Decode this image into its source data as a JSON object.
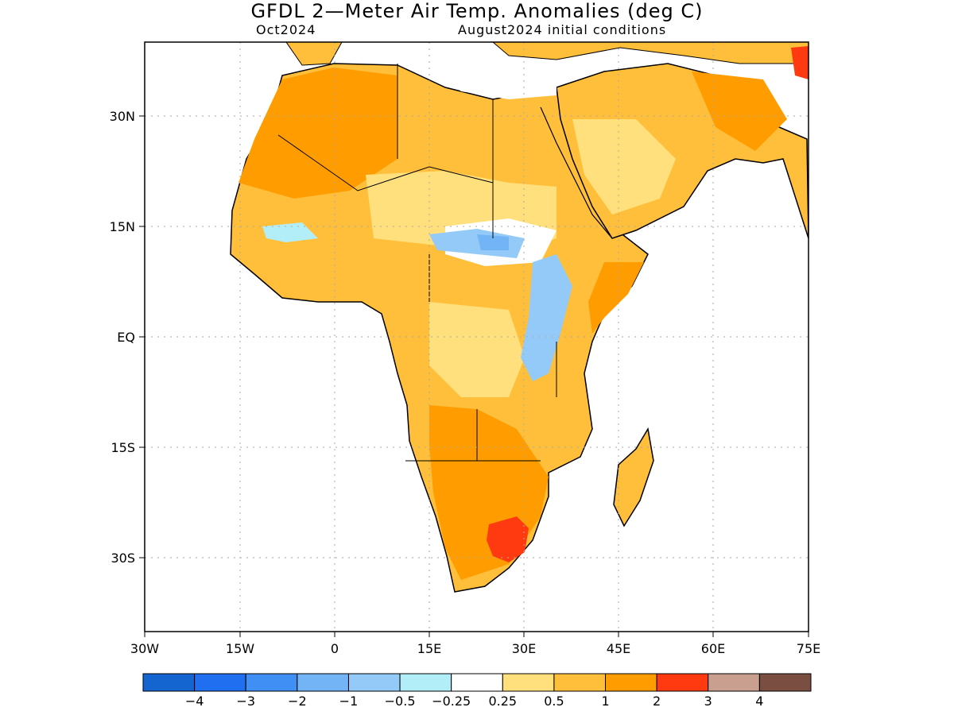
{
  "title": "GFDL 2—Meter Air Temp. Anomalies (deg C)",
  "subtitle_left": "Oct2024",
  "subtitle_right": "August2024 initial conditions",
  "map": {
    "region": "Africa and Arabian Peninsula",
    "lon_range": [
      -30,
      75
    ],
    "lat_range": [
      -40,
      40
    ],
    "x_ticks": [
      "30W",
      "15W",
      "0",
      "15E",
      "30E",
      "45E",
      "60E",
      "75E"
    ],
    "y_ticks": [
      "30N",
      "15N",
      "EQ",
      "15S",
      "30S"
    ],
    "grid": "dotted"
  },
  "colorbar": {
    "colors": [
      "#1565d0",
      "#1f6ff0",
      "#3f8ff4",
      "#73b4f6",
      "#94caf8",
      "#b2eef8",
      "#ffffff",
      "#ffe07c",
      "#ffbf3a",
      "#ff9d00",
      "#ff3a10",
      "#c9a090",
      "#7a4f42"
    ],
    "labels": [
      "−4",
      "−3",
      "−2",
      "−1",
      "−0.5",
      "−0.25",
      "0.25",
      "0.5",
      "1",
      "2",
      "3",
      "4"
    ]
  }
}
